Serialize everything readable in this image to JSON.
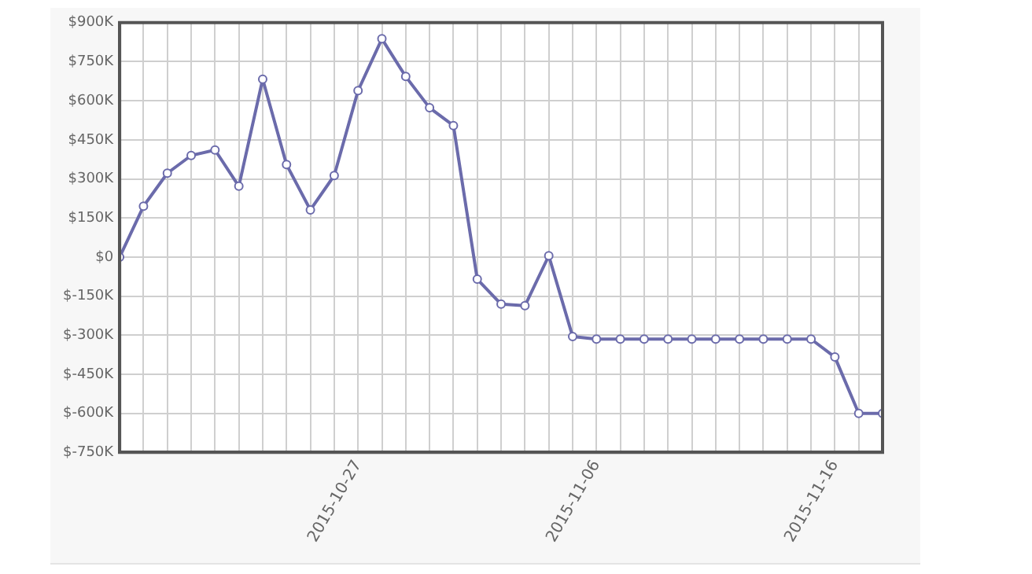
{
  "chart_data": {
    "type": "line",
    "x": [
      "2015-10-17",
      "2015-10-18",
      "2015-10-19",
      "2015-10-20",
      "2015-10-21",
      "2015-10-22",
      "2015-10-23",
      "2015-10-24",
      "2015-10-25",
      "2015-10-26",
      "2015-10-27",
      "2015-10-28",
      "2015-10-29",
      "2015-10-30",
      "2015-10-31",
      "2015-11-01",
      "2015-11-02",
      "2015-11-03",
      "2015-11-04",
      "2015-11-05",
      "2015-11-06",
      "2015-11-07",
      "2015-11-08",
      "2015-11-09",
      "2015-11-10",
      "2015-11-11",
      "2015-11-12",
      "2015-11-13",
      "2015-11-14",
      "2015-11-15",
      "2015-11-16",
      "2015-11-17",
      "2015-11-18"
    ],
    "series": [
      {
        "color": "#6b6bab",
        "values": [
          0,
          195000,
          322000,
          390000,
          411000,
          272000,
          683000,
          355000,
          181000,
          313000,
          639000,
          838000,
          693000,
          573000,
          505000,
          -85000,
          -181000,
          -187000,
          5000,
          -305000,
          -315000,
          -315000,
          -315000,
          -315000,
          -315000,
          -315000,
          -315000,
          -315000,
          -315000,
          -315000,
          -384000,
          -600000,
          -600000
        ]
      }
    ],
    "xlim": [
      "2015-10-17",
      "2015-11-18"
    ],
    "xticks": [
      {
        "value": "2015-10-17",
        "label": null
      },
      {
        "value": "2015-10-18",
        "label": null
      },
      {
        "value": "2015-10-19",
        "label": null
      },
      {
        "value": "2015-10-20",
        "label": null
      },
      {
        "value": "2015-10-21",
        "label": null
      },
      {
        "value": "2015-10-22",
        "label": null
      },
      {
        "value": "2015-10-23",
        "label": null
      },
      {
        "value": "2015-10-24",
        "label": null
      },
      {
        "value": "2015-10-25",
        "label": null
      },
      {
        "value": "2015-10-26",
        "label": null
      },
      {
        "value": "2015-10-27",
        "label": "2015-10-27"
      },
      {
        "value": "2015-10-28",
        "label": null
      },
      {
        "value": "2015-10-29",
        "label": null
      },
      {
        "value": "2015-10-30",
        "label": null
      },
      {
        "value": "2015-10-31",
        "label": null
      },
      {
        "value": "2015-11-01",
        "label": null
      },
      {
        "value": "2015-11-02",
        "label": null
      },
      {
        "value": "2015-11-03",
        "label": null
      },
      {
        "value": "2015-11-04",
        "label": null
      },
      {
        "value": "2015-11-05",
        "label": null
      },
      {
        "value": "2015-11-06",
        "label": "2015-11-06"
      },
      {
        "value": "2015-11-07",
        "label": null
      },
      {
        "value": "2015-11-08",
        "label": null
      },
      {
        "value": "2015-11-09",
        "label": null
      },
      {
        "value": "2015-11-10",
        "label": null
      },
      {
        "value": "2015-11-11",
        "label": null
      },
      {
        "value": "2015-11-12",
        "label": null
      },
      {
        "value": "2015-11-13",
        "label": null
      },
      {
        "value": "2015-11-14",
        "label": null
      },
      {
        "value": "2015-11-15",
        "label": null
      },
      {
        "value": "2015-11-16",
        "label": "2015-11-16"
      },
      {
        "value": "2015-11-17",
        "label": null
      },
      {
        "value": "2015-11-18",
        "label": null
      }
    ],
    "ylim": [
      -750000,
      900000
    ],
    "yticks": [
      {
        "value": -750000,
        "label": "$-750K"
      },
      {
        "value": -600000,
        "label": "$-600K"
      },
      {
        "value": -450000,
        "label": "$-450K"
      },
      {
        "value": -300000,
        "label": "$-300K"
      },
      {
        "value": -150000,
        "label": "$-150K"
      },
      {
        "value": 0,
        "label": "$0"
      },
      {
        "value": 150000,
        "label": "$150K"
      },
      {
        "value": 300000,
        "label": "$300K"
      },
      {
        "value": 450000,
        "label": "$450K"
      },
      {
        "value": 600000,
        "label": "$600K"
      },
      {
        "value": 750000,
        "label": "$750K"
      },
      {
        "value": 900000,
        "label": "$900K"
      }
    ],
    "grid": true,
    "legend": false,
    "marker": "circle",
    "line_style": "solid"
  }
}
